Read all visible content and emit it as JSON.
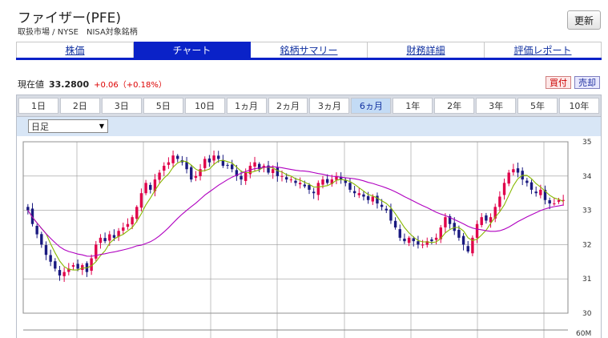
{
  "header": {
    "title": "ファイザー(PFE)",
    "market": "取扱市場 / NYSE　NISA対象銘柄",
    "refresh_label": "更新"
  },
  "nav": {
    "tabs": [
      {
        "label": "株価",
        "active": false
      },
      {
        "label": "チャート",
        "active": true
      },
      {
        "label": "銘柄サマリー",
        "active": false
      },
      {
        "label": "財務詳細",
        "active": false
      },
      {
        "label": "評価レポート",
        "active": false
      }
    ]
  },
  "quote": {
    "label": "現在値",
    "price": "33.2800",
    "change": "+0.06（+0.18%）",
    "buy_label": "買付",
    "sell_label": "売却"
  },
  "periods": [
    {
      "label": "1日",
      "active": false
    },
    {
      "label": "2日",
      "active": false
    },
    {
      "label": "3日",
      "active": false
    },
    {
      "label": "5日",
      "active": false
    },
    {
      "label": "10日",
      "active": false
    },
    {
      "label": "1ヵ月",
      "active": false
    },
    {
      "label": "2ヵ月",
      "active": false
    },
    {
      "label": "3ヵ月",
      "active": false
    },
    {
      "label": "6ヵ月",
      "active": true
    },
    {
      "label": "1年",
      "active": false
    },
    {
      "label": "2年",
      "active": false
    },
    {
      "label": "3年",
      "active": false
    },
    {
      "label": "5年",
      "active": false
    },
    {
      "label": "10年",
      "active": false
    }
  ],
  "chart_select": {
    "value": "日足"
  },
  "chart_data": {
    "type": "candlestick",
    "ylim": [
      30,
      35
    ],
    "y_ticks": [
      35,
      34,
      33,
      32,
      31,
      30
    ],
    "volume_label": "60M",
    "colors": {
      "up": "#e0004a",
      "down": "#1a1a80",
      "ma_short": "#88b800",
      "ma_long": "#b000c0"
    },
    "closes": [
      33.0,
      32.6,
      32.3,
      32.0,
      31.7,
      31.5,
      31.3,
      31.1,
      31.2,
      31.3,
      31.4,
      31.3,
      31.4,
      31.2,
      31.6,
      32.0,
      32.2,
      32.1,
      32.3,
      32.2,
      32.4,
      32.5,
      32.6,
      32.8,
      33.1,
      33.5,
      33.8,
      33.6,
      33.9,
      34.1,
      34.3,
      34.4,
      34.6,
      34.5,
      34.4,
      34.2,
      33.9,
      34.0,
      34.2,
      34.5,
      34.4,
      34.6,
      34.5,
      34.3,
      34.3,
      34.2,
      34.0,
      33.9,
      34.1,
      34.3,
      34.4,
      34.2,
      34.3,
      34.1,
      34.2,
      34.0,
      34.0,
      33.9,
      33.9,
      33.8,
      33.8,
      33.7,
      33.6,
      33.5,
      33.8,
      33.9,
      33.8,
      33.9,
      34.0,
      33.9,
      33.8,
      33.6,
      33.5,
      33.5,
      33.4,
      33.3,
      33.4,
      33.2,
      33.1,
      33.0,
      32.7,
      32.5,
      32.2,
      32.1,
      32.2,
      32.1,
      32.0,
      32.0,
      32.1,
      32.1,
      32.2,
      32.5,
      32.8,
      32.6,
      32.4,
      32.2,
      32.0,
      31.8,
      32.2,
      32.6,
      32.8,
      32.7,
      32.8,
      33.1,
      33.4,
      33.8,
      34.1,
      34.2,
      34.1,
      33.9,
      33.8,
      33.6,
      33.5,
      33.6,
      33.3,
      33.2,
      33.2,
      33.3,
      33.3
    ]
  }
}
